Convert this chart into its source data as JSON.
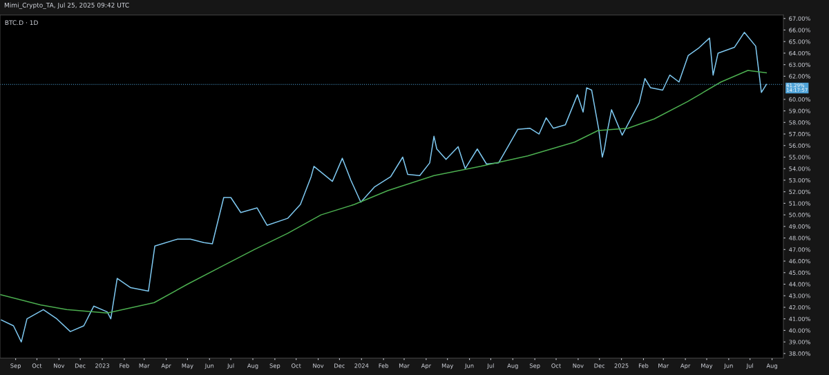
{
  "chart_data": {
    "type": "line",
    "title": "BTC.D · 1D",
    "annotations": [
      "Mimi_Crypto_TA, Jul 25, 2025 09:42 UTC"
    ],
    "xlim": [
      "2022-08-10",
      "2025-08-17"
    ],
    "xticks": [
      {
        "value": "2022-09-01",
        "label": "Sep"
      },
      {
        "value": "2022-10-01",
        "label": "Oct"
      },
      {
        "value": "2022-11-01",
        "label": "Nov"
      },
      {
        "value": "2022-12-01",
        "label": "Dec"
      },
      {
        "value": "2023-01-01",
        "label": "2023"
      },
      {
        "value": "2023-02-01",
        "label": "Feb"
      },
      {
        "value": "2023-03-01",
        "label": "Mar"
      },
      {
        "value": "2023-04-01",
        "label": "Apr"
      },
      {
        "value": "2023-05-01",
        "label": "May"
      },
      {
        "value": "2023-06-01",
        "label": "Jun"
      },
      {
        "value": "2023-07-01",
        "label": "Jul"
      },
      {
        "value": "2023-08-01",
        "label": "Aug"
      },
      {
        "value": "2023-09-01",
        "label": "Sep"
      },
      {
        "value": "2023-10-01",
        "label": "Oct"
      },
      {
        "value": "2023-11-01",
        "label": "Nov"
      },
      {
        "value": "2023-12-01",
        "label": "Dec"
      },
      {
        "value": "2024-01-01",
        "label": "2024"
      },
      {
        "value": "2024-02-01",
        "label": "Feb"
      },
      {
        "value": "2024-03-01",
        "label": "Mar"
      },
      {
        "value": "2024-04-01",
        "label": "Apr"
      },
      {
        "value": "2024-05-01",
        "label": "May"
      },
      {
        "value": "2024-06-01",
        "label": "Jun"
      },
      {
        "value": "2024-07-01",
        "label": "Jul"
      },
      {
        "value": "2024-08-01",
        "label": "Aug"
      },
      {
        "value": "2024-09-01",
        "label": "Sep"
      },
      {
        "value": "2024-10-01",
        "label": "Oct"
      },
      {
        "value": "2024-11-01",
        "label": "Nov"
      },
      {
        "value": "2024-12-01",
        "label": "Dec"
      },
      {
        "value": "2025-01-01",
        "label": "2025"
      },
      {
        "value": "2025-02-01",
        "label": "Feb"
      },
      {
        "value": "2025-03-01",
        "label": "Mar"
      },
      {
        "value": "2025-04-01",
        "label": "Apr"
      },
      {
        "value": "2025-05-01",
        "label": "May"
      },
      {
        "value": "2025-06-01",
        "label": "Jun"
      },
      {
        "value": "2025-07-01",
        "label": "Jul"
      },
      {
        "value": "2025-08-01",
        "label": "Aug"
      }
    ],
    "ylim": [
      37.6,
      67.3
    ],
    "yticks": [
      {
        "value": 38,
        "label": "38.00%"
      },
      {
        "value": 39,
        "label": "39.00%"
      },
      {
        "value": 40,
        "label": "40.00%"
      },
      {
        "value": 41,
        "label": "41.00%"
      },
      {
        "value": 42,
        "label": "42.00%"
      },
      {
        "value": 43,
        "label": "43.00%"
      },
      {
        "value": 44,
        "label": "44.00%"
      },
      {
        "value": 45,
        "label": "45.00%"
      },
      {
        "value": 46,
        "label": "46.00%"
      },
      {
        "value": 47,
        "label": "47.00%"
      },
      {
        "value": 48,
        "label": "48.00%"
      },
      {
        "value": 49,
        "label": "49.00%"
      },
      {
        "value": 50,
        "label": "50.00%"
      },
      {
        "value": 51,
        "label": "51.00%"
      },
      {
        "value": 52,
        "label": "52.00%"
      },
      {
        "value": 53,
        "label": "53.00%"
      },
      {
        "value": 54,
        "label": "54.00%"
      },
      {
        "value": 55,
        "label": "55.00%"
      },
      {
        "value": 56,
        "label": "56.00%"
      },
      {
        "value": 57,
        "label": "57.00%"
      },
      {
        "value": 58,
        "label": "58.00%"
      },
      {
        "value": 59,
        "label": "59.00%"
      },
      {
        "value": 60,
        "label": "60.00%"
      },
      {
        "value": 62,
        "label": "62.00%"
      },
      {
        "value": 63,
        "label": "63.00%"
      },
      {
        "value": 64,
        "label": "64.00%"
      },
      {
        "value": 65,
        "label": "65.00%"
      },
      {
        "value": 66,
        "label": "66.00%"
      },
      {
        "value": 67,
        "label": "67.00%"
      }
    ],
    "grid": false,
    "ref_lines": [
      {
        "axis": "y",
        "value": 61.29,
        "label": "61.29%\n14:17:57",
        "color": "#4fa3d8",
        "line_style": "dotted"
      }
    ],
    "series": [
      {
        "color": "#7ec8f0",
        "x": [
          "2022-08-12",
          "2022-08-29",
          "2022-09-09",
          "2022-09-17",
          "2022-10-10",
          "2022-10-29",
          "2022-11-17",
          "2022-12-06",
          "2022-12-20",
          "2023-01-08",
          "2023-01-13",
          "2023-01-22",
          "2023-02-10",
          "2023-03-07",
          "2023-03-16",
          "2023-04-17",
          "2023-05-05",
          "2023-05-24",
          "2023-06-05",
          "2023-06-21",
          "2023-07-01",
          "2023-07-15",
          "2023-08-07",
          "2023-08-21",
          "2023-09-19",
          "2023-10-07",
          "2023-10-22",
          "2023-10-26",
          "2023-11-21",
          "2023-12-05",
          "2023-12-17",
          "2023-12-31",
          "2024-01-19",
          "2024-02-11",
          "2024-02-28",
          "2024-03-06",
          "2024-03-23",
          "2024-04-06",
          "2024-04-12",
          "2024-04-16",
          "2024-04-29",
          "2024-05-16",
          "2024-05-26",
          "2024-06-12",
          "2024-06-25",
          "2024-07-12",
          "2024-07-26",
          "2024-08-08",
          "2024-08-25",
          "2024-09-07",
          "2024-09-17",
          "2024-09-27",
          "2024-10-14",
          "2024-10-31",
          "2024-11-08",
          "2024-11-13",
          "2024-11-20",
          "2024-11-30",
          "2024-12-05",
          "2024-12-08",
          "2024-12-12",
          "2024-12-18",
          "2025-01-02",
          "2025-01-26",
          "2025-02-03",
          "2025-02-11",
          "2025-02-28",
          "2025-03-10",
          "2025-03-23",
          "2025-04-05",
          "2025-04-19",
          "2025-05-05",
          "2025-05-10",
          "2025-05-17",
          "2025-06-09",
          "2025-06-23",
          "2025-07-09",
          "2025-07-17",
          "2025-07-24"
        ],
        "values": [
          40.9,
          40.4,
          39.0,
          41.0,
          41.8,
          41.0,
          39.9,
          40.4,
          42.1,
          41.6,
          41.0,
          44.5,
          43.7,
          43.4,
          47.3,
          47.9,
          47.9,
          47.6,
          47.5,
          51.5,
          51.5,
          50.2,
          50.6,
          49.1,
          49.7,
          50.9,
          53.3,
          54.2,
          52.9,
          54.9,
          53.0,
          51.1,
          52.4,
          53.3,
          55.0,
          53.5,
          53.4,
          54.5,
          56.8,
          55.7,
          54.8,
          55.9,
          54.0,
          55.7,
          54.4,
          54.5,
          56.0,
          57.4,
          57.5,
          57.0,
          58.4,
          57.5,
          57.8,
          60.4,
          58.9,
          61.0,
          60.8,
          57.4,
          55.0,
          55.7,
          57.2,
          59.1,
          56.9,
          59.7,
          61.8,
          61.0,
          60.8,
          62.1,
          61.5,
          63.8,
          64.4,
          65.3,
          62.1,
          64.0,
          64.5,
          65.8,
          64.6,
          60.6,
          61.29
        ]
      },
      {
        "color": "#4caf50",
        "x": [
          "2022-08-10",
          "2022-10-06",
          "2022-11-12",
          "2023-01-08",
          "2023-03-15",
          "2023-05-01",
          "2023-06-17",
          "2023-08-03",
          "2023-09-19",
          "2023-11-05",
          "2023-12-22",
          "2024-02-07",
          "2024-04-12",
          "2024-06-17",
          "2024-08-22",
          "2024-10-27",
          "2024-11-29",
          "2025-01-10",
          "2025-02-16",
          "2025-04-04",
          "2025-05-21",
          "2025-06-28",
          "2025-07-24"
        ],
        "values": [
          43.1,
          42.2,
          41.8,
          41.5,
          42.4,
          44.0,
          45.5,
          47.0,
          48.4,
          50.0,
          50.9,
          52.1,
          53.4,
          54.2,
          55.1,
          56.3,
          57.3,
          57.5,
          58.3,
          59.8,
          61.5,
          62.5,
          62.3
        ]
      }
    ]
  }
}
